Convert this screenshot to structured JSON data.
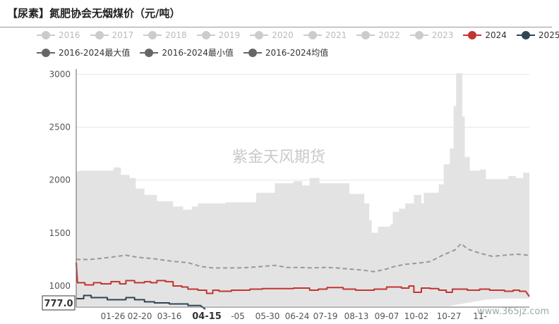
{
  "title": "【尿素】氮肥协会无烟煤价（元/吨）",
  "legend_row1": [
    {
      "name": "2016",
      "color": "#cccccc"
    },
    {
      "name": "2017",
      "color": "#cccccc"
    },
    {
      "name": "2018",
      "color": "#cccccc"
    },
    {
      "name": "2019",
      "color": "#cccccc"
    },
    {
      "name": "2020",
      "color": "#cccccc"
    },
    {
      "name": "2021",
      "color": "#cccccc"
    },
    {
      "name": "2022",
      "color": "#cccccc"
    },
    {
      "name": "2023",
      "color": "#cccccc"
    },
    {
      "name": "2024",
      "color": "#c23531"
    },
    {
      "name": "2025",
      "color": "#2f4554"
    }
  ],
  "legend_row2": [
    {
      "name": "2016-2024最大值",
      "color": "#666666"
    },
    {
      "name": "2016-2024最小值",
      "color": "#666666"
    },
    {
      "name": "2016-2024均值",
      "color": "#666666"
    }
  ],
  "watermark": "紫金天风期货",
  "site_watermark": "www.365jz.com",
  "chart_data": {
    "type": "area",
    "x_tick_labels": [
      "01-26",
      "02-20",
      "03-16",
      "04-15",
      "-05",
      "05-30",
      "06-24",
      "07-19",
      "08-13",
      "09-07",
      "10-02",
      "10-27",
      "11-"
    ],
    "highlight_x_label": "04-15",
    "y_ticks": [
      1000,
      1500,
      2000,
      2500,
      3000
    ],
    "ylim": [
      800,
      3050
    ],
    "xlim": [
      0,
      365
    ],
    "current_value_label": "777.0",
    "band_max": [
      [
        0,
        2080
      ],
      [
        5,
        2090
      ],
      [
        30,
        2090
      ],
      [
        30,
        2120
      ],
      [
        36,
        2120
      ],
      [
        36,
        2050
      ],
      [
        43,
        2050
      ],
      [
        43,
        2020
      ],
      [
        48,
        2020
      ],
      [
        48,
        1920
      ],
      [
        55,
        1920
      ],
      [
        55,
        1860
      ],
      [
        65,
        1860
      ],
      [
        65,
        1800
      ],
      [
        78,
        1800
      ],
      [
        78,
        1750
      ],
      [
        86,
        1750
      ],
      [
        86,
        1720
      ],
      [
        93,
        1720
      ],
      [
        93,
        1750
      ],
      [
        98,
        1750
      ],
      [
        98,
        1780
      ],
      [
        120,
        1780
      ],
      [
        120,
        1790
      ],
      [
        145,
        1790
      ],
      [
        145,
        1880
      ],
      [
        160,
        1880
      ],
      [
        160,
        1970
      ],
      [
        175,
        1970
      ],
      [
        175,
        1990
      ],
      [
        182,
        1990
      ],
      [
        182,
        1950
      ],
      [
        188,
        1950
      ],
      [
        188,
        2020
      ],
      [
        196,
        2020
      ],
      [
        196,
        1970
      ],
      [
        220,
        1970
      ],
      [
        220,
        1870
      ],
      [
        232,
        1870
      ],
      [
        232,
        1780
      ],
      [
        236,
        1780
      ],
      [
        236,
        1620
      ],
      [
        238,
        1620
      ],
      [
        238,
        1500
      ],
      [
        243,
        1500
      ],
      [
        243,
        1560
      ],
      [
        253,
        1560
      ],
      [
        253,
        1580
      ],
      [
        255,
        1580
      ],
      [
        255,
        1700
      ],
      [
        260,
        1700
      ],
      [
        260,
        1730
      ],
      [
        265,
        1730
      ],
      [
        265,
        1780
      ],
      [
        272,
        1780
      ],
      [
        272,
        1860
      ],
      [
        278,
        1860
      ],
      [
        278,
        1780
      ],
      [
        280,
        1780
      ],
      [
        280,
        1880
      ],
      [
        292,
        1880
      ],
      [
        292,
        1960
      ],
      [
        296,
        1960
      ],
      [
        296,
        2150
      ],
      [
        301,
        2150
      ],
      [
        301,
        2300
      ],
      [
        304,
        2300
      ],
      [
        304,
        2700
      ],
      [
        306,
        2700
      ],
      [
        306,
        3010
      ],
      [
        311,
        3010
      ],
      [
        311,
        2600
      ],
      [
        313,
        2600
      ],
      [
        313,
        2220
      ],
      [
        317,
        2220
      ],
      [
        317,
        2090
      ],
      [
        325,
        2090
      ],
      [
        325,
        2100
      ],
      [
        330,
        2100
      ],
      [
        330,
        2010
      ],
      [
        348,
        2010
      ],
      [
        348,
        2040
      ],
      [
        354,
        2040
      ],
      [
        354,
        2020
      ],
      [
        360,
        2020
      ],
      [
        360,
        2070
      ],
      [
        365,
        2070
      ]
    ],
    "band_min": [
      [
        0,
        810
      ],
      [
        100,
        810
      ],
      [
        200,
        810
      ],
      [
        300,
        810
      ],
      [
        310,
        830
      ],
      [
        320,
        850
      ],
      [
        330,
        870
      ],
      [
        345,
        880
      ],
      [
        365,
        880
      ]
    ],
    "series": [
      {
        "name": "2024",
        "color": "#c23531",
        "points": [
          [
            0,
            1220
          ],
          [
            1,
            1030
          ],
          [
            7,
            1030
          ],
          [
            7,
            1010
          ],
          [
            14,
            1010
          ],
          [
            14,
            1030
          ],
          [
            20,
            1030
          ],
          [
            20,
            1020
          ],
          [
            28,
            1020
          ],
          [
            28,
            1040
          ],
          [
            35,
            1040
          ],
          [
            35,
            1020
          ],
          [
            40,
            1020
          ],
          [
            40,
            1050
          ],
          [
            47,
            1050
          ],
          [
            47,
            1030
          ],
          [
            55,
            1030
          ],
          [
            55,
            1040
          ],
          [
            60,
            1040
          ],
          [
            60,
            1030
          ],
          [
            65,
            1030
          ],
          [
            65,
            1050
          ],
          [
            72,
            1050
          ],
          [
            72,
            1040
          ],
          [
            78,
            1040
          ],
          [
            78,
            1000
          ],
          [
            85,
            1000
          ],
          [
            85,
            990
          ],
          [
            90,
            990
          ],
          [
            90,
            970
          ],
          [
            98,
            970
          ],
          [
            98,
            960
          ],
          [
            105,
            960
          ],
          [
            105,
            930
          ],
          [
            110,
            930
          ],
          [
            110,
            960
          ],
          [
            115,
            960
          ],
          [
            115,
            950
          ],
          [
            125,
            950
          ],
          [
            125,
            960
          ],
          [
            140,
            960
          ],
          [
            140,
            970
          ],
          [
            150,
            970
          ],
          [
            150,
            975
          ],
          [
            175,
            975
          ],
          [
            175,
            980
          ],
          [
            188,
            980
          ],
          [
            188,
            960
          ],
          [
            195,
            960
          ],
          [
            195,
            970
          ],
          [
            202,
            970
          ],
          [
            202,
            985
          ],
          [
            215,
            985
          ],
          [
            215,
            970
          ],
          [
            225,
            970
          ],
          [
            225,
            960
          ],
          [
            240,
            960
          ],
          [
            240,
            970
          ],
          [
            250,
            970
          ],
          [
            250,
            990
          ],
          [
            262,
            990
          ],
          [
            262,
            980
          ],
          [
            268,
            980
          ],
          [
            268,
            1000
          ],
          [
            272,
            1000
          ],
          [
            272,
            940
          ],
          [
            278,
            940
          ],
          [
            278,
            980
          ],
          [
            285,
            980
          ],
          [
            285,
            975
          ],
          [
            292,
            975
          ],
          [
            292,
            960
          ],
          [
            298,
            960
          ],
          [
            298,
            940
          ],
          [
            303,
            940
          ],
          [
            303,
            970
          ],
          [
            315,
            970
          ],
          [
            315,
            960
          ],
          [
            325,
            960
          ],
          [
            325,
            970
          ],
          [
            333,
            970
          ],
          [
            333,
            960
          ],
          [
            345,
            960
          ],
          [
            345,
            950
          ],
          [
            352,
            950
          ],
          [
            352,
            960
          ],
          [
            357,
            960
          ],
          [
            357,
            950
          ],
          [
            362,
            950
          ],
          [
            365,
            900
          ]
        ]
      },
      {
        "name": "2025",
        "color": "#2f4554",
        "points": [
          [
            0,
            880
          ],
          [
            6,
            880
          ],
          [
            6,
            910
          ],
          [
            12,
            910
          ],
          [
            12,
            890
          ],
          [
            25,
            890
          ],
          [
            25,
            870
          ],
          [
            40,
            870
          ],
          [
            40,
            890
          ],
          [
            47,
            890
          ],
          [
            47,
            870
          ],
          [
            55,
            870
          ],
          [
            55,
            850
          ],
          [
            63,
            850
          ],
          [
            63,
            840
          ],
          [
            75,
            840
          ],
          [
            75,
            830
          ],
          [
            90,
            830
          ],
          [
            90,
            815
          ],
          [
            100,
            815
          ],
          [
            104,
            780
          ]
        ]
      },
      {
        "name": "2016-2024均值",
        "color": "#999999",
        "dashed": true,
        "points": [
          [
            0,
            1250
          ],
          [
            10,
            1250
          ],
          [
            20,
            1260
          ],
          [
            30,
            1275
          ],
          [
            40,
            1290
          ],
          [
            50,
            1270
          ],
          [
            60,
            1260
          ],
          [
            70,
            1245
          ],
          [
            80,
            1230
          ],
          [
            90,
            1220
          ],
          [
            100,
            1185
          ],
          [
            110,
            1170
          ],
          [
            120,
            1170
          ],
          [
            130,
            1170
          ],
          [
            140,
            1175
          ],
          [
            150,
            1185
          ],
          [
            160,
            1195
          ],
          [
            170,
            1175
          ],
          [
            180,
            1175
          ],
          [
            190,
            1170
          ],
          [
            200,
            1175
          ],
          [
            210,
            1170
          ],
          [
            220,
            1160
          ],
          [
            230,
            1150
          ],
          [
            240,
            1135
          ],
          [
            250,
            1160
          ],
          [
            255,
            1180
          ],
          [
            265,
            1205
          ],
          [
            275,
            1215
          ],
          [
            285,
            1230
          ],
          [
            295,
            1290
          ],
          [
            305,
            1340
          ],
          [
            310,
            1400
          ],
          [
            315,
            1350
          ],
          [
            325,
            1310
          ],
          [
            335,
            1280
          ],
          [
            345,
            1290
          ],
          [
            355,
            1300
          ],
          [
            365,
            1290
          ]
        ]
      }
    ]
  }
}
